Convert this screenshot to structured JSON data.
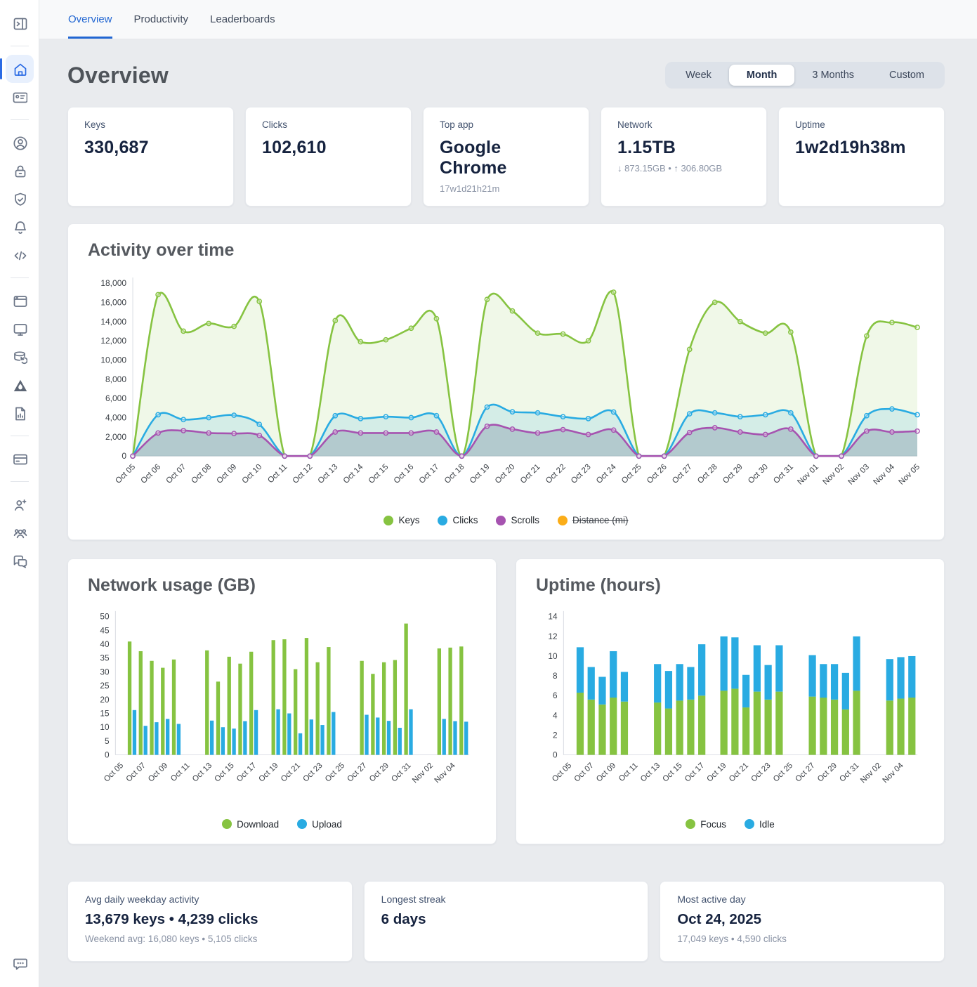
{
  "header": {
    "tabs": [
      {
        "label": "Overview",
        "active": true
      },
      {
        "label": "Productivity",
        "active": false
      },
      {
        "label": "Leaderboards",
        "active": false
      }
    ]
  },
  "page": {
    "title": "Overview"
  },
  "range": {
    "options": [
      "Week",
      "Month",
      "3 Months",
      "Custom"
    ],
    "active": "Month"
  },
  "stats": [
    {
      "label": "Keys",
      "value": "330,687"
    },
    {
      "label": "Clicks",
      "value": "102,610"
    },
    {
      "label": "Top app",
      "value": "Google Chrome",
      "sub": "17w1d21h21m"
    },
    {
      "label": "Network",
      "value": "1.15TB",
      "sub": "↓ 873.15GB • ↑ 306.80GB"
    },
    {
      "label": "Uptime",
      "value": "1w2d19h38m"
    }
  ],
  "colors": {
    "accent_blue": "#2166d2",
    "series_green": "#86c341",
    "series_blue": "#29abe2",
    "series_purple": "#a653b0",
    "series_orange": "#fbad18"
  },
  "chart_data": [
    {
      "type": "area",
      "title": "Activity over time",
      "ylim": [
        0,
        18000
      ],
      "ytick": 2000,
      "grid": false,
      "legend_position": "bottom",
      "categories": [
        "Oct 05",
        "Oct 06",
        "Oct 07",
        "Oct 08",
        "Oct 09",
        "Oct 10",
        "Oct 11",
        "Oct 12",
        "Oct 13",
        "Oct 14",
        "Oct 15",
        "Oct 16",
        "Oct 17",
        "Oct 18",
        "Oct 19",
        "Oct 20",
        "Oct 21",
        "Oct 22",
        "Oct 23",
        "Oct 24",
        "Oct 25",
        "Oct 26",
        "Oct 27",
        "Oct 28",
        "Oct 29",
        "Oct 30",
        "Oct 31",
        "Nov 01",
        "Nov 02",
        "Nov 03",
        "Nov 04",
        "Nov 05"
      ],
      "series": [
        {
          "name": "Keys",
          "color": "#86c341",
          "fill": "rgba(134,195,65,0.12)",
          "values": [
            0,
            16800,
            13000,
            13800,
            13500,
            16100,
            0,
            0,
            14100,
            11900,
            12100,
            13300,
            14300,
            0,
            16300,
            15100,
            12800,
            12700,
            12000,
            17049,
            0,
            0,
            11100,
            16000,
            14000,
            12800,
            12900,
            0,
            0,
            12500,
            13900,
            13400
          ]
        },
        {
          "name": "Clicks",
          "color": "#29abe2",
          "fill": "rgba(41,171,226,0.14)",
          "values": [
            0,
            4300,
            3800,
            4000,
            4250,
            3300,
            0,
            0,
            4200,
            3900,
            4100,
            4000,
            4200,
            0,
            5100,
            4600,
            4500,
            4100,
            3900,
            4590,
            0,
            0,
            4400,
            4500,
            4100,
            4300,
            4500,
            0,
            0,
            4200,
            4900,
            4300
          ]
        },
        {
          "name": "Scrolls",
          "color": "#a653b0",
          "fill": "rgba(104,124,150,0.30)",
          "values": [
            0,
            2400,
            2650,
            2400,
            2350,
            2150,
            0,
            0,
            2500,
            2400,
            2400,
            2400,
            2500,
            0,
            3100,
            2800,
            2400,
            2750,
            2250,
            2700,
            0,
            0,
            2450,
            2950,
            2500,
            2250,
            2800,
            0,
            0,
            2600,
            2500,
            2600
          ]
        },
        {
          "name": "Distance (mi)",
          "color": "#fbad18",
          "fill": "rgba(251,173,24,0.12)",
          "hidden": true,
          "values": []
        }
      ]
    },
    {
      "type": "bar",
      "title": "Network usage (GB)",
      "ylim": [
        0,
        50
      ],
      "ytick": 5,
      "label_every": 2,
      "grid": false,
      "legend_position": "bottom",
      "categories": [
        "Oct 05",
        "Oct 06",
        "Oct 07",
        "Oct 08",
        "Oct 09",
        "Oct 10",
        "Oct 11",
        "Oct 12",
        "Oct 13",
        "Oct 14",
        "Oct 15",
        "Oct 16",
        "Oct 17",
        "Oct 18",
        "Oct 19",
        "Oct 20",
        "Oct 21",
        "Oct 22",
        "Oct 23",
        "Oct 24",
        "Oct 25",
        "Oct 26",
        "Oct 27",
        "Oct 28",
        "Oct 29",
        "Oct 30",
        "Oct 31",
        "Nov 01",
        "Nov 02",
        "Nov 03",
        "Nov 04",
        "Nov 05"
      ],
      "series": [
        {
          "name": "Download",
          "color": "#86c341",
          "values": [
            0,
            41,
            37.5,
            34,
            31.5,
            34.5,
            0,
            0,
            37.8,
            26.5,
            35.5,
            33,
            37.3,
            0,
            41.5,
            41.8,
            31,
            42.3,
            33.5,
            39,
            0,
            0,
            34,
            29.3,
            33.5,
            34.3,
            47.5,
            0,
            0,
            38.5,
            38.8,
            39.2
          ]
        },
        {
          "name": "Upload",
          "color": "#29abe2",
          "values": [
            0,
            16.2,
            10.5,
            11.8,
            13,
            11.2,
            0,
            0,
            12.4,
            10,
            9.5,
            12.2,
            16.2,
            0,
            16.5,
            15,
            7.8,
            12.8,
            10.8,
            15.5,
            0,
            0,
            14.5,
            13.5,
            12.3,
            9.8,
            16.5,
            0,
            0,
            13,
            12.2,
            12
          ]
        }
      ]
    },
    {
      "type": "stacked-bar",
      "title": "Uptime (hours)",
      "ylim": [
        0,
        14
      ],
      "ytick": 2,
      "label_every": 2,
      "grid": false,
      "legend_position": "bottom",
      "categories": [
        "Oct 05",
        "Oct 06",
        "Oct 07",
        "Oct 08",
        "Oct 09",
        "Oct 10",
        "Oct 11",
        "Oct 12",
        "Oct 13",
        "Oct 14",
        "Oct 15",
        "Oct 16",
        "Oct 17",
        "Oct 18",
        "Oct 19",
        "Oct 20",
        "Oct 21",
        "Oct 22",
        "Oct 23",
        "Oct 24",
        "Oct 25",
        "Oct 26",
        "Oct 27",
        "Oct 28",
        "Oct 29",
        "Oct 30",
        "Oct 31",
        "Nov 01",
        "Nov 02",
        "Nov 03",
        "Nov 04",
        "Nov 05"
      ],
      "series": [
        {
          "name": "Focus",
          "color": "#86c341",
          "values": [
            0,
            6.3,
            5.6,
            5.1,
            5.8,
            5.4,
            0,
            0,
            5.3,
            4.7,
            5.5,
            5.6,
            6.0,
            0,
            6.5,
            6.7,
            4.8,
            6.4,
            5.6,
            6.4,
            0,
            0,
            5.9,
            5.8,
            5.6,
            4.6,
            6.5,
            0,
            0,
            5.5,
            5.7,
            5.8
          ]
        },
        {
          "name": "Idle",
          "color": "#29abe2",
          "values": [
            0,
            4.6,
            3.3,
            2.8,
            4.7,
            3.0,
            0,
            0,
            3.9,
            3.8,
            3.7,
            3.3,
            5.2,
            0,
            5.5,
            5.2,
            3.3,
            4.7,
            3.5,
            4.7,
            0,
            0,
            4.2,
            3.4,
            3.6,
            3.7,
            5.5,
            0,
            0,
            4.2,
            4.2,
            4.2
          ]
        }
      ]
    }
  ],
  "summary": [
    {
      "label": "Avg daily weekday activity",
      "value": "13,679 keys • 4,239 clicks",
      "sub": "Weekend avg: 16,080 keys • 5,105 clicks"
    },
    {
      "label": "Longest streak",
      "value": "6 days"
    },
    {
      "label": "Most active day",
      "value": "Oct 24, 2025",
      "sub": "17,049 keys • 4,590 clicks"
    }
  ]
}
